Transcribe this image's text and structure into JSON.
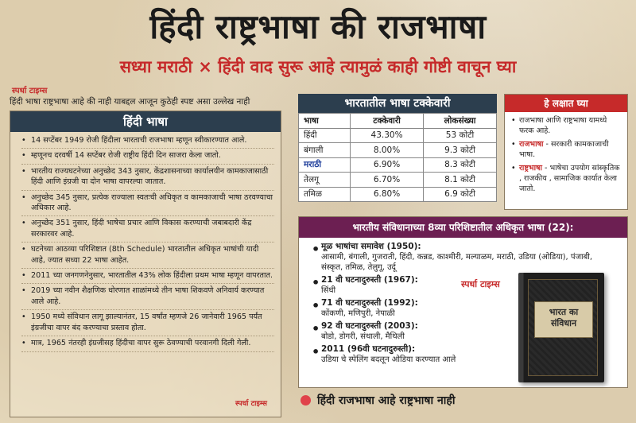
{
  "title": "हिंदी राष्ट्रभाषा की राजभाषा",
  "subtitle": "सध्या मराठी × हिंदी वाद सुरू आहे त्यामुळं काही गोष्टी वाचून घ्या",
  "brand": "स्पर्धा टाइम्स",
  "intro": "हिंदी भाषा राष्ट्रभाषा आहे की नाही याबद्दल आजून कुठेही स्पष्ट असा उल्लेख नाही",
  "left": {
    "heading": "हिंदी भाषा",
    "points": [
      "14 सप्टेंबर 1949 रोजी हिंदीला भारताची राजभाषा म्हणून स्वीकारण्यात आले.",
      "म्हणूनच दरवर्षी 14 सप्टेंबर रोजी राष्ट्रीय हिंदी दिन साजरा केला जातो.",
      "भारतीय राज्यघटनेच्या अनुच्छेद 343 नुसार, केंद्रशासनाच्या कार्यालयीन कामकाजासाठी हिंदी आणि इंग्रजी या दोन भाषा वापरल्या जातात.",
      "अनुच्छेद 345 नुसार, प्रत्येक राज्याला स्वतःची अधिकृत व कामकाजाची भाषा ठरवण्याचा अधिकार आहे.",
      "अनुच्छेद 351 नुसार, हिंदी भाषेचा प्रचार आणि विकास करण्याची जबाबदारी केंद्र सरकारवर आहे.",
      "घटनेच्या आठव्या परिशिष्टात (8th Schedule) भारतातील अधिकृत भाषांची यादी आहे, ज्यात सध्या 22 भाषा आहेत.",
      "2011 च्या जनगणनेनुसार, भारतातील 43% लोक हिंदीला प्रथम भाषा म्हणून वापरतात.",
      "2019 च्या नवीन शैक्षणिक धोरणात शाळांमध्ये तीन भाषा शिकवणे अनिवार्य करण्यात आले आहे.",
      "1950 मध्ये संविधान लागू झाल्यानंतर, 15 वर्षांत म्हणजे 26 जानेवारी 1965 पर्यंत इंग्रजीचा वापर बंद करण्याचा प्रस्ताव होता.",
      "मात्र, 1965 नंतरही इंग्रजीसह हिंदीचा वापर सुरू ठेवण्याची परवानगी दिली गेली."
    ]
  },
  "table": {
    "heading": "भारतातील भाषा टक्केवारी",
    "columns": [
      "भाषा",
      "टक्केवारी",
      "लोकसंख्या"
    ],
    "rows": [
      [
        "हिंदी",
        "43.30%",
        "53 कोटी"
      ],
      [
        "बंगाली",
        "8.00%",
        "9.3 कोटी"
      ],
      [
        "मराठी",
        "6.90%",
        "8.3 कोटी"
      ],
      [
        "तेलगू",
        "6.70%",
        "8.1 कोटी"
      ],
      [
        "तमिळ",
        "6.80%",
        "6.9 कोटी"
      ]
    ]
  },
  "note": {
    "heading": "हे लक्षात घ्या",
    "p1": "राजभाषा आणि राष्ट्रभाषा यामध्ये फरक आहे.",
    "p2_term": "राजभाषा",
    "p2_text": " - सरकारी कामकाजाची भाषा.",
    "p3_term": "राष्ट्रभाषा",
    "p3_text": " - भाषेचा उपयोग सांस्कृतिक , राजकीय , सामाजिक कार्यात केला जातो."
  },
  "schedule": {
    "heading": "भारतीय संविधानाच्या 8व्या परिशिष्टातील अधिकृत भाषा (22):",
    "items": [
      {
        "label": "मूळ भाषांचा समावेश (1950):",
        "text": "आसामी, बंगाली, गुजराती, हिंदी, कन्नड, काश्मीरी, मल्याळम, मराठी, उडिया (ओडिया), पंजाबी, संस्कृत, तमिळ, तेलुगू, उर्दू"
      },
      {
        "label": "21 वी घटनादुरुस्ती (1967):",
        "text": "सिंधी"
      },
      {
        "label": "71 वी घटनादुरुस्ती (1992):",
        "text": "कोंकणी, मणिपुरी, नेपाळी"
      },
      {
        "label": "92 वी घटनादुरुस्ती (2003):",
        "text": "बोडो, डोगरी, संथाली, मैथिली"
      },
      {
        "label": "2011 (96वी घटनादुरुस्ती):",
        "text": "उडिया चे स्पेलिंग बदलून ओडिया करण्यात आले"
      }
    ]
  },
  "book": {
    "title_line1": "भारत का",
    "title_line2": "संविधान"
  },
  "footer": "हिंदी राजभाषा आहे राष्ट्रभाषा नाही"
}
